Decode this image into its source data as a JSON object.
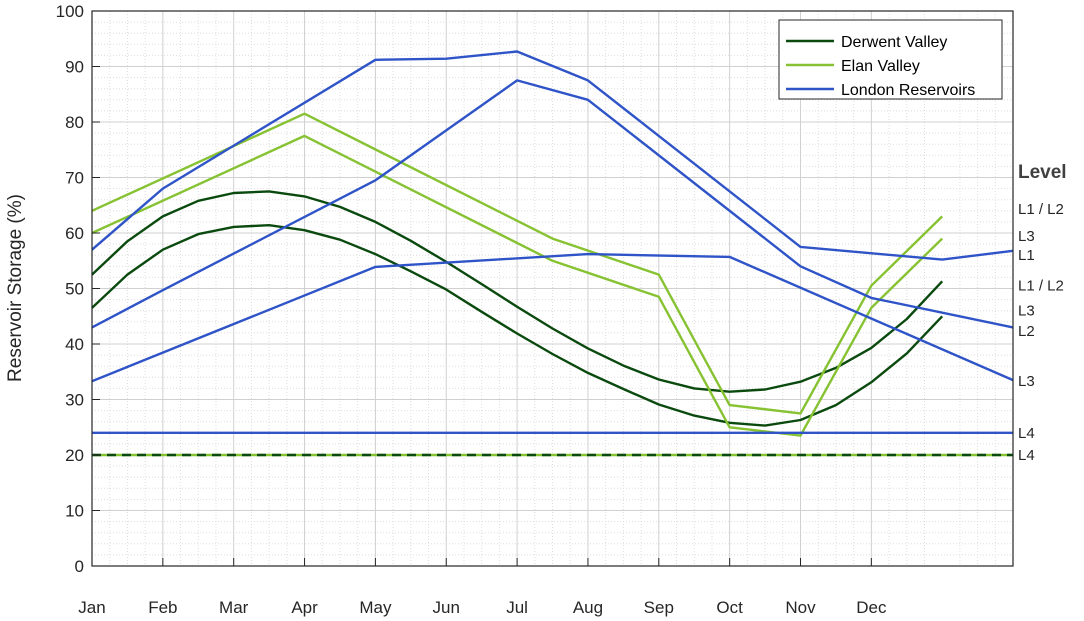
{
  "chart_data": {
    "type": "line",
    "ylabel": "Reservoir Storage  (%)",
    "ylim": [
      0,
      100
    ],
    "y_ticks": [
      0,
      10,
      20,
      30,
      40,
      50,
      60,
      70,
      80,
      90,
      100
    ],
    "x_ticks": [
      "Jan",
      "Feb",
      "Mar",
      "Apr",
      "May",
      "Jun",
      "Jul",
      "Aug",
      "Sep",
      "Oct",
      "Nov",
      "Dec"
    ],
    "grid": true,
    "legend_position": "top-right",
    "legend": [
      {
        "name": "Derwent Valley",
        "color": "#0b4a0f"
      },
      {
        "name": "Elan Valley",
        "color": "#86c232"
      },
      {
        "name": "London Reservoirs",
        "color": "#2f54c8"
      }
    ],
    "level_header": "Level",
    "series": [
      {
        "legend": 0,
        "color": "#0b4a0f",
        "style": "solid",
        "x": [
          1,
          1.5,
          2,
          2.5,
          3,
          3.5,
          4,
          4.5,
          5,
          5.5,
          6,
          6.5,
          7,
          7.5,
          8,
          8.5,
          9,
          9.5,
          10,
          10.5,
          11,
          11.5,
          12,
          12.5,
          13
        ],
        "y": [
          52.5,
          58.5,
          63,
          65.8,
          67.2,
          67.5,
          66.6,
          64.7,
          62,
          58.6,
          54.8,
          50.8,
          46.7,
          42.8,
          39.2,
          36.1,
          33.6,
          32,
          31.4,
          31.8,
          33.2,
          35.7,
          39.3,
          44.5,
          51.3
        ]
      },
      {
        "legend": 0,
        "color": "#0b4a0f",
        "style": "solid",
        "x": [
          1,
          1.5,
          2,
          2.5,
          3,
          3.5,
          4,
          4.5,
          5,
          5.5,
          6,
          6.5,
          7,
          7.5,
          8,
          8.5,
          9,
          9.5,
          10,
          10.5,
          11,
          11.5,
          12,
          12.5,
          13
        ],
        "y": [
          46.5,
          52.5,
          57,
          59.8,
          61.1,
          61.4,
          60.5,
          58.8,
          56.2,
          53.1,
          49.8,
          45.8,
          41.9,
          38.2,
          34.8,
          31.9,
          29.1,
          27.1,
          25.8,
          25.3,
          26.3,
          29,
          33.1,
          38.3,
          45
        ]
      },
      {
        "legend": 1,
        "color": "#86c232",
        "style": "solid",
        "x": [
          1,
          4,
          7.5,
          9,
          10,
          11,
          12,
          13
        ],
        "y": [
          64,
          81.5,
          59,
          52.5,
          29,
          27.5,
          50.5,
          63
        ]
      },
      {
        "legend": 1,
        "color": "#86c232",
        "style": "solid",
        "x": [
          1,
          4,
          7.5,
          9,
          10,
          11,
          12,
          13
        ],
        "y": [
          60,
          77.5,
          55,
          48.5,
          25,
          23.5,
          46.5,
          59
        ]
      },
      {
        "legend": 2,
        "color": "#2f54c8",
        "style": "solid",
        "x": [
          1,
          2,
          5,
          6,
          7,
          8,
          11,
          13,
          14
        ],
        "y": [
          57,
          68,
          91.2,
          91.4,
          92.7,
          87.5,
          57.5,
          55.2,
          56.8
        ]
      },
      {
        "legend": 2,
        "color": "#2f54c8",
        "style": "solid",
        "x": [
          1,
          2,
          5,
          7,
          8,
          11,
          12,
          14
        ],
        "y": [
          43,
          49.7,
          69.5,
          87.5,
          84,
          54,
          48.3,
          43
        ]
      },
      {
        "legend": 2,
        "color": "#2f54c8",
        "style": "solid",
        "x": [
          1,
          5,
          8,
          10,
          14
        ],
        "y": [
          33.3,
          53.9,
          56.2,
          55.7,
          33.5
        ]
      },
      {
        "legend": 2,
        "color": "#2f54c8",
        "style": "solid",
        "x": [
          1,
          14
        ],
        "y": [
          24,
          24
        ]
      },
      {
        "legend": 1,
        "color": "#86c232",
        "style": "solid",
        "x": [
          1,
          14
        ],
        "y": [
          20,
          20
        ]
      },
      {
        "legend": 0,
        "color": "#0b4a0f",
        "style": "dashed",
        "x": [
          1,
          14
        ],
        "y": [
          20,
          20
        ]
      }
    ],
    "level_labels": [
      {
        "text": "L1 / L2",
        "y": 64.3
      },
      {
        "text": "L3",
        "y": 59.5
      },
      {
        "text": "L1",
        "y": 56
      },
      {
        "text": "L1 / L2",
        "y": 50.5
      },
      {
        "text": "L3",
        "y": 46
      },
      {
        "text": "L2",
        "y": 42.3
      },
      {
        "text": "L3",
        "y": 33.3
      },
      {
        "text": "L4",
        "y": 24
      },
      {
        "text": "L4",
        "y": 20
      }
    ]
  }
}
